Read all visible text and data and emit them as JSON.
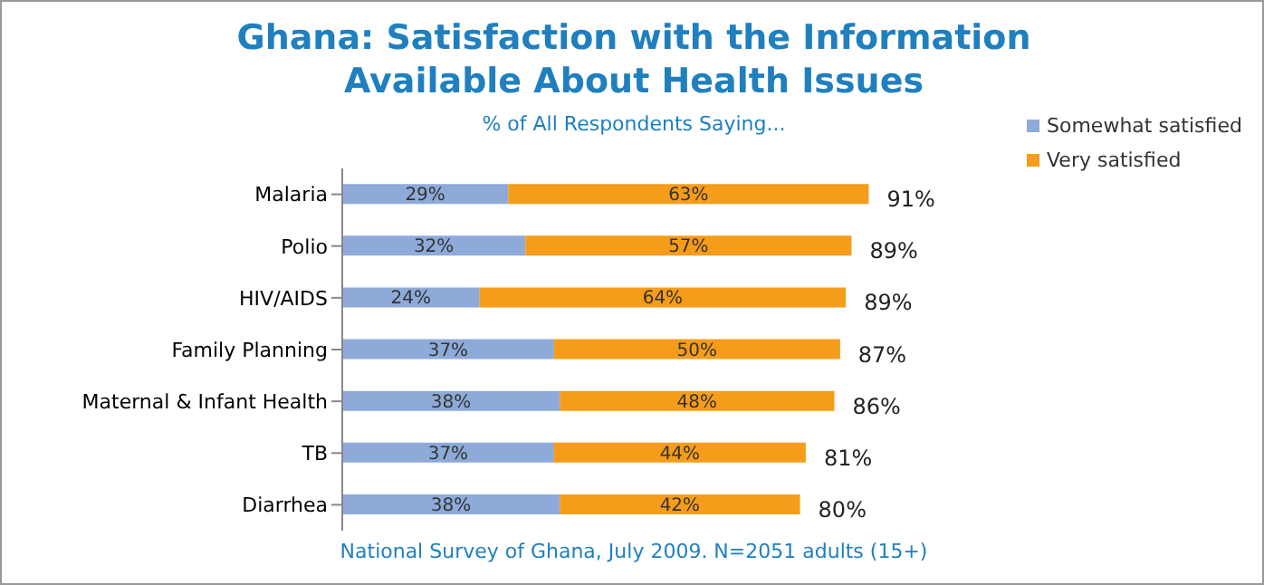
{
  "chart_data": {
    "type": "bar",
    "orientation": "horizontal",
    "stacked": true,
    "title": "Ghana: Satisfaction with the Information Available About Health Issues",
    "subtitle": "% of All Respondents Saying...",
    "categories": [
      "Malaria",
      "Polio",
      "HIV/AIDS",
      "Family Planning",
      "Maternal & Infant Health",
      "TB",
      "Diarrhea"
    ],
    "series": [
      {
        "name": "Somewhat satisfied",
        "color": "#8eaad8",
        "values": [
          29,
          32,
          24,
          37,
          38,
          37,
          38
        ],
        "value_labels": [
          "29%",
          "32%",
          "24%",
          "37%",
          "38%",
          "37%",
          "38%"
        ]
      },
      {
        "name": "Very satisfied",
        "color": "#f59c1a",
        "values": [
          63,
          57,
          64,
          50,
          48,
          44,
          42
        ],
        "value_labels": [
          "63%",
          "57%",
          "64%",
          "50%",
          "48%",
          "44%",
          "42%"
        ]
      }
    ],
    "totals": [
      "91%",
      "89%",
      "89%",
      "87%",
      "86%",
      "81%",
      "80%"
    ],
    "tick_labels": "y",
    "legend": "top right",
    "annotations": [
      "National Survey of Ghana, July 2009. N=2051 adults (15+)"
    ]
  }
}
